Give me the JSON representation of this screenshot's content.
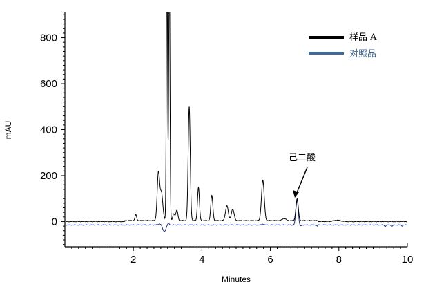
{
  "chart_data": {
    "type": "line",
    "xlabel": "Minutes",
    "ylabel": "mAU",
    "xlim": [
      0,
      10
    ],
    "ylim": [
      -110,
      910
    ],
    "x_ticks": [
      2,
      4,
      6,
      8,
      10
    ],
    "y_ticks": [
      0,
      200,
      400,
      600,
      800
    ],
    "grid": false,
    "legend_position": "top-right",
    "series": [
      {
        "name": "样品 A",
        "color": "#000000",
        "baseline": 0,
        "peaks": [
          {
            "t": 2.07,
            "h": 25,
            "w": 0.025
          },
          {
            "t": 2.73,
            "h": 205,
            "w": 0.035
          },
          {
            "t": 2.82,
            "h": 120,
            "w": 0.04
          },
          {
            "t": 2.98,
            "h": 1150,
            "w": 0.018
          },
          {
            "t": 3.05,
            "h": 1150,
            "w": 0.018
          },
          {
            "t": 3.18,
            "h": 30,
            "w": 0.03
          },
          {
            "t": 3.27,
            "h": 45,
            "w": 0.03
          },
          {
            "t": 3.63,
            "h": 495,
            "w": 0.03
          },
          {
            "t": 3.9,
            "h": 145,
            "w": 0.028
          },
          {
            "t": 4.29,
            "h": 110,
            "w": 0.03
          },
          {
            "t": 4.73,
            "h": 65,
            "w": 0.04
          },
          {
            "t": 4.9,
            "h": 50,
            "w": 0.04
          },
          {
            "t": 5.78,
            "h": 175,
            "w": 0.04
          },
          {
            "t": 6.4,
            "h": 10,
            "w": 0.05
          },
          {
            "t": 6.78,
            "h": 95,
            "w": 0.035
          },
          {
            "t": 7.95,
            "h": 6,
            "w": 0.1
          }
        ]
      },
      {
        "name": "对照品",
        "color": "#1c2a8f",
        "baseline": -15,
        "peaks": [
          {
            "t": 2.78,
            "h": 6,
            "w": 0.05
          },
          {
            "t": 2.9,
            "h": -28,
            "w": 0.05
          },
          {
            "t": 3.02,
            "h": 8,
            "w": 0.03
          },
          {
            "t": 5.78,
            "h": 4,
            "w": 0.03
          },
          {
            "t": 6.78,
            "h": 108,
            "w": 0.035
          },
          {
            "t": 6.87,
            "h": -6,
            "w": 0.03
          },
          {
            "t": 7.37,
            "h": -5,
            "w": 0.015
          },
          {
            "t": 9.35,
            "h": -6,
            "w": 0.02
          },
          {
            "t": 9.55,
            "h": -5,
            "w": 0.02
          },
          {
            "t": 9.85,
            "h": -4,
            "w": 0.02
          }
        ]
      }
    ],
    "annotations": [
      {
        "text": "己二酸",
        "x": 6.78,
        "y": 100
      }
    ]
  },
  "legend": {
    "items": [
      {
        "label": "样品 A",
        "color": "#000000",
        "text_color": "#000000"
      },
      {
        "label": "对照品",
        "color": "#3f6a9e",
        "text_color": "#3f6a9e"
      }
    ]
  }
}
